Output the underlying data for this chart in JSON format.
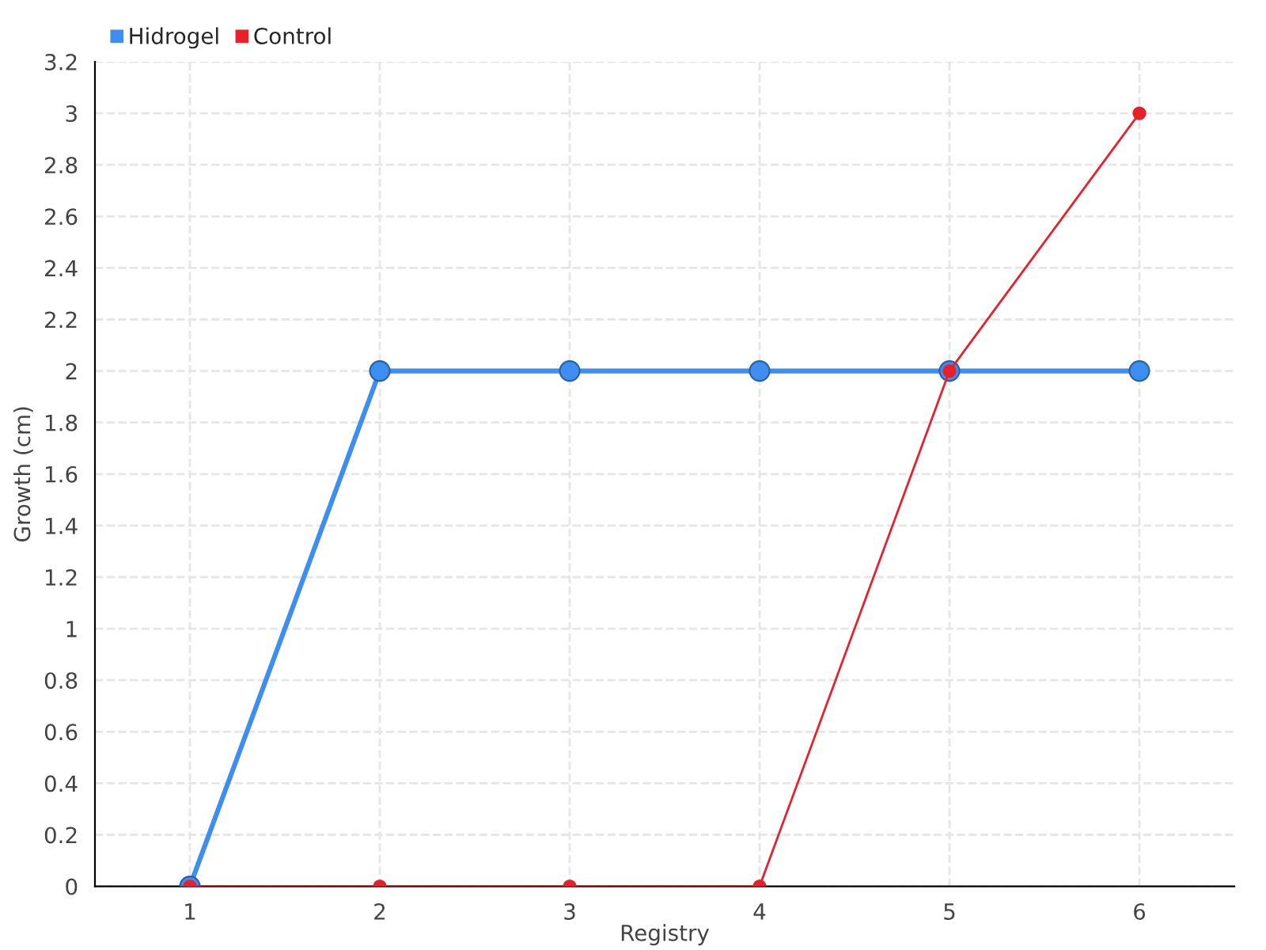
{
  "chart_data": {
    "type": "line",
    "xlabel": "Registry",
    "ylabel": "Growth (cm)",
    "x": [
      1,
      2,
      3,
      4,
      5,
      6
    ],
    "series": [
      {
        "name": "Hidrogel",
        "color": "#3d8ef0",
        "values": [
          0,
          2,
          2,
          2,
          2,
          2
        ]
      },
      {
        "name": "Control",
        "color": "#e8202a",
        "values": [
          0,
          0,
          0,
          0,
          2,
          3
        ]
      }
    ],
    "xlim": [
      0.5,
      6.5
    ],
    "xticks": [
      1,
      2,
      3,
      4,
      5,
      6
    ],
    "ylim": [
      0,
      3.2
    ],
    "yticks": [
      0,
      0.2,
      0.4,
      0.6,
      0.8,
      1,
      1.2,
      1.4,
      1.6,
      1.8,
      2,
      2.2,
      2.4,
      2.6,
      2.8,
      3,
      3.2
    ],
    "grid": true,
    "legend": "top left",
    "marker": "circle",
    "line_style": "solid"
  }
}
